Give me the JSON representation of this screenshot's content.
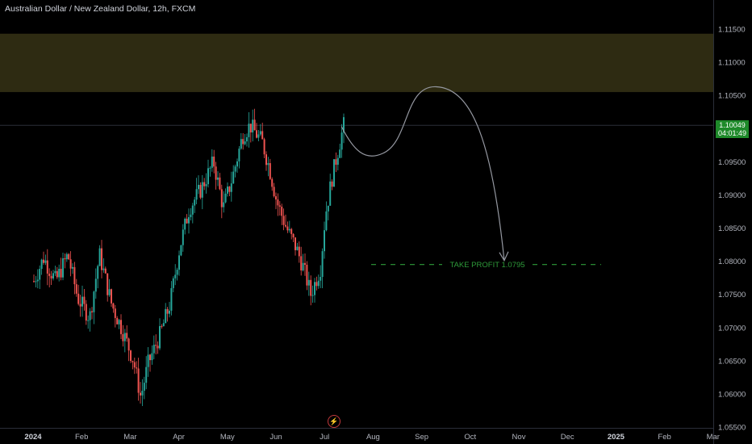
{
  "header": {
    "title": "Australian Dollar / New Zealand Dollar, 12h, FXCM"
  },
  "price_badge": {
    "price": "1.10049",
    "countdown": "04:01:49",
    "color": "#1e8a2a"
  },
  "chart_data": {
    "type": "candlestick",
    "title": "Australian Dollar / New Zealand Dollar, 12h, FXCM",
    "y_ticks": [
      "1.11500",
      "1.11000",
      "1.10500",
      "1.10000",
      "1.09500",
      "1.09000",
      "1.08500",
      "1.08000",
      "1.07500",
      "1.07000",
      "1.06500",
      "1.06000",
      "1.05500"
    ],
    "ylim": [
      1.055,
      1.119
    ],
    "x_ticks": [
      {
        "label": "2024",
        "bold": true
      },
      {
        "label": "Feb",
        "bold": false
      },
      {
        "label": "Mar",
        "bold": false
      },
      {
        "label": "Apr",
        "bold": false
      },
      {
        "label": "May",
        "bold": false
      },
      {
        "label": "Jun",
        "bold": false
      },
      {
        "label": "Jul",
        "bold": false
      },
      {
        "label": "Aug",
        "bold": false
      },
      {
        "label": "Sep",
        "bold": false
      },
      {
        "label": "Oct",
        "bold": false
      },
      {
        "label": "Nov",
        "bold": false
      },
      {
        "label": "Dec",
        "bold": false
      },
      {
        "label": "2025",
        "bold": true
      },
      {
        "label": "Feb",
        "bold": false
      },
      {
        "label": "Mar",
        "bold": false
      }
    ],
    "current_price": 1.10049,
    "resistance_zone": [
      1.1055,
      1.1143
    ],
    "take_profit": {
      "label": "TAKE PROFIT 1.0795",
      "value": 1.0795
    },
    "projection_path": [
      {
        "month": 6.35,
        "price": 1.1003
      },
      {
        "month": 7.0,
        "price": 1.0965
      },
      {
        "month": 8.3,
        "price": 1.1063
      },
      {
        "month": 9.7,
        "price": 1.0795
      }
    ],
    "price_path": [
      {
        "month": 0.0,
        "price": 1.077
      },
      {
        "month": 0.2,
        "price": 1.0805
      },
      {
        "month": 0.45,
        "price": 1.077
      },
      {
        "month": 0.7,
        "price": 1.081
      },
      {
        "month": 0.9,
        "price": 1.0745
      },
      {
        "month": 1.15,
        "price": 1.0715
      },
      {
        "month": 1.35,
        "price": 1.081
      },
      {
        "month": 1.6,
        "price": 1.0735
      },
      {
        "month": 1.8,
        "price": 1.07
      },
      {
        "month": 2.05,
        "price": 1.065
      },
      {
        "month": 2.2,
        "price": 1.0595
      },
      {
        "month": 2.35,
        "price": 1.0645
      },
      {
        "month": 2.6,
        "price": 1.069
      },
      {
        "month": 2.8,
        "price": 1.0735
      },
      {
        "month": 3.0,
        "price": 1.082
      },
      {
        "month": 3.2,
        "price": 1.088
      },
      {
        "month": 3.45,
        "price": 1.091
      },
      {
        "month": 3.7,
        "price": 1.095
      },
      {
        "month": 3.9,
        "price": 1.088
      },
      {
        "month": 4.1,
        "price": 1.093
      },
      {
        "month": 4.3,
        "price": 1.099
      },
      {
        "month": 4.45,
        "price": 1.1005
      },
      {
        "month": 4.7,
        "price": 1.098
      },
      {
        "month": 4.85,
        "price": 1.094
      },
      {
        "month": 5.0,
        "price": 1.089
      },
      {
        "month": 5.2,
        "price": 1.085
      },
      {
        "month": 5.4,
        "price": 1.082
      },
      {
        "month": 5.55,
        "price": 1.079
      },
      {
        "month": 5.7,
        "price": 1.075
      },
      {
        "month": 5.9,
        "price": 1.079
      },
      {
        "month": 6.0,
        "price": 1.087
      },
      {
        "month": 6.15,
        "price": 1.093
      },
      {
        "month": 6.3,
        "price": 1.098
      },
      {
        "month": 6.38,
        "price": 1.1005
      }
    ]
  }
}
